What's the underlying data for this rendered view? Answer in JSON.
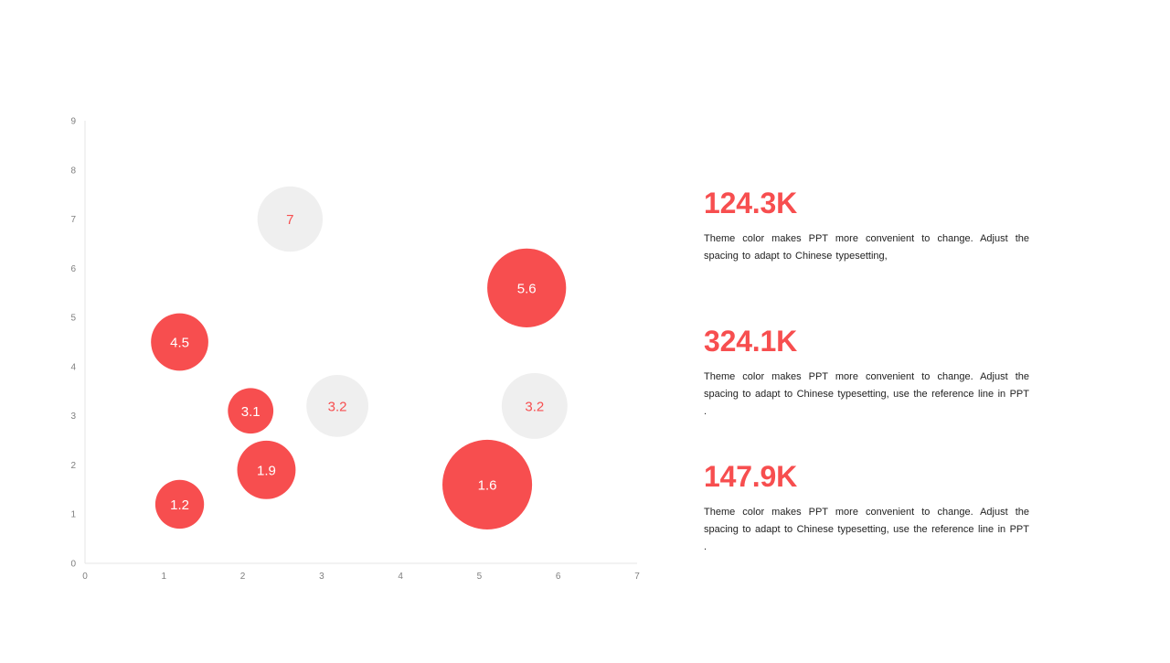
{
  "theme": {
    "accent": "#f74e4f",
    "muted": "#efefef",
    "axis": "#e6e6e6",
    "tick_text": "#7f7f7f",
    "body_text": "#222222"
  },
  "chart_data": {
    "type": "bubble",
    "xlim": [
      0,
      7
    ],
    "ylim": [
      0,
      9
    ],
    "x_ticks": [
      "0",
      "1",
      "2",
      "3",
      "4",
      "5",
      "6",
      "7"
    ],
    "y_ticks": [
      "0",
      "1",
      "2",
      "3",
      "4",
      "5",
      "6",
      "7",
      "8",
      "9"
    ],
    "grid": false,
    "points": [
      {
        "x": 2.6,
        "y": 7.0,
        "label": "7",
        "style": "muted",
        "size": 7.0
      },
      {
        "x": 5.6,
        "y": 5.6,
        "label": "5.6",
        "style": "accent",
        "size": 10.2
      },
      {
        "x": 1.2,
        "y": 4.5,
        "label": "4.5",
        "style": "accent",
        "size": 5.4
      },
      {
        "x": 2.1,
        "y": 3.1,
        "label": "3.1",
        "style": "accent",
        "size": 3.4
      },
      {
        "x": 3.2,
        "y": 3.2,
        "label": "3.2",
        "style": "muted",
        "size": 6.3
      },
      {
        "x": 5.7,
        "y": 3.2,
        "label": "3.2",
        "style": "muted",
        "size": 7.1
      },
      {
        "x": 2.3,
        "y": 1.9,
        "label": "1.9",
        "style": "accent",
        "size": 5.6
      },
      {
        "x": 1.2,
        "y": 1.2,
        "label": "1.2",
        "style": "accent",
        "size": 3.9
      },
      {
        "x": 5.1,
        "y": 1.6,
        "label": "1.6",
        "style": "accent",
        "size": 13.2
      }
    ]
  },
  "stats": [
    {
      "value": "124.3K",
      "description": "Theme color makes PPT more convenient  to change. Adjust the spacing to adapt to Chinese typesetting,"
    },
    {
      "value": "324.1K",
      "description": "Theme color makes PPT more convenient  to change. Adjust the spacing to adapt to Chinese typesetting,  use the reference  line in PPT ."
    },
    {
      "value": "147.9K",
      "description": "Theme color makes PPT more convenient  to change. Adjust the spacing to adapt to Chinese typesetting,  use the reference  line in PPT ."
    }
  ]
}
